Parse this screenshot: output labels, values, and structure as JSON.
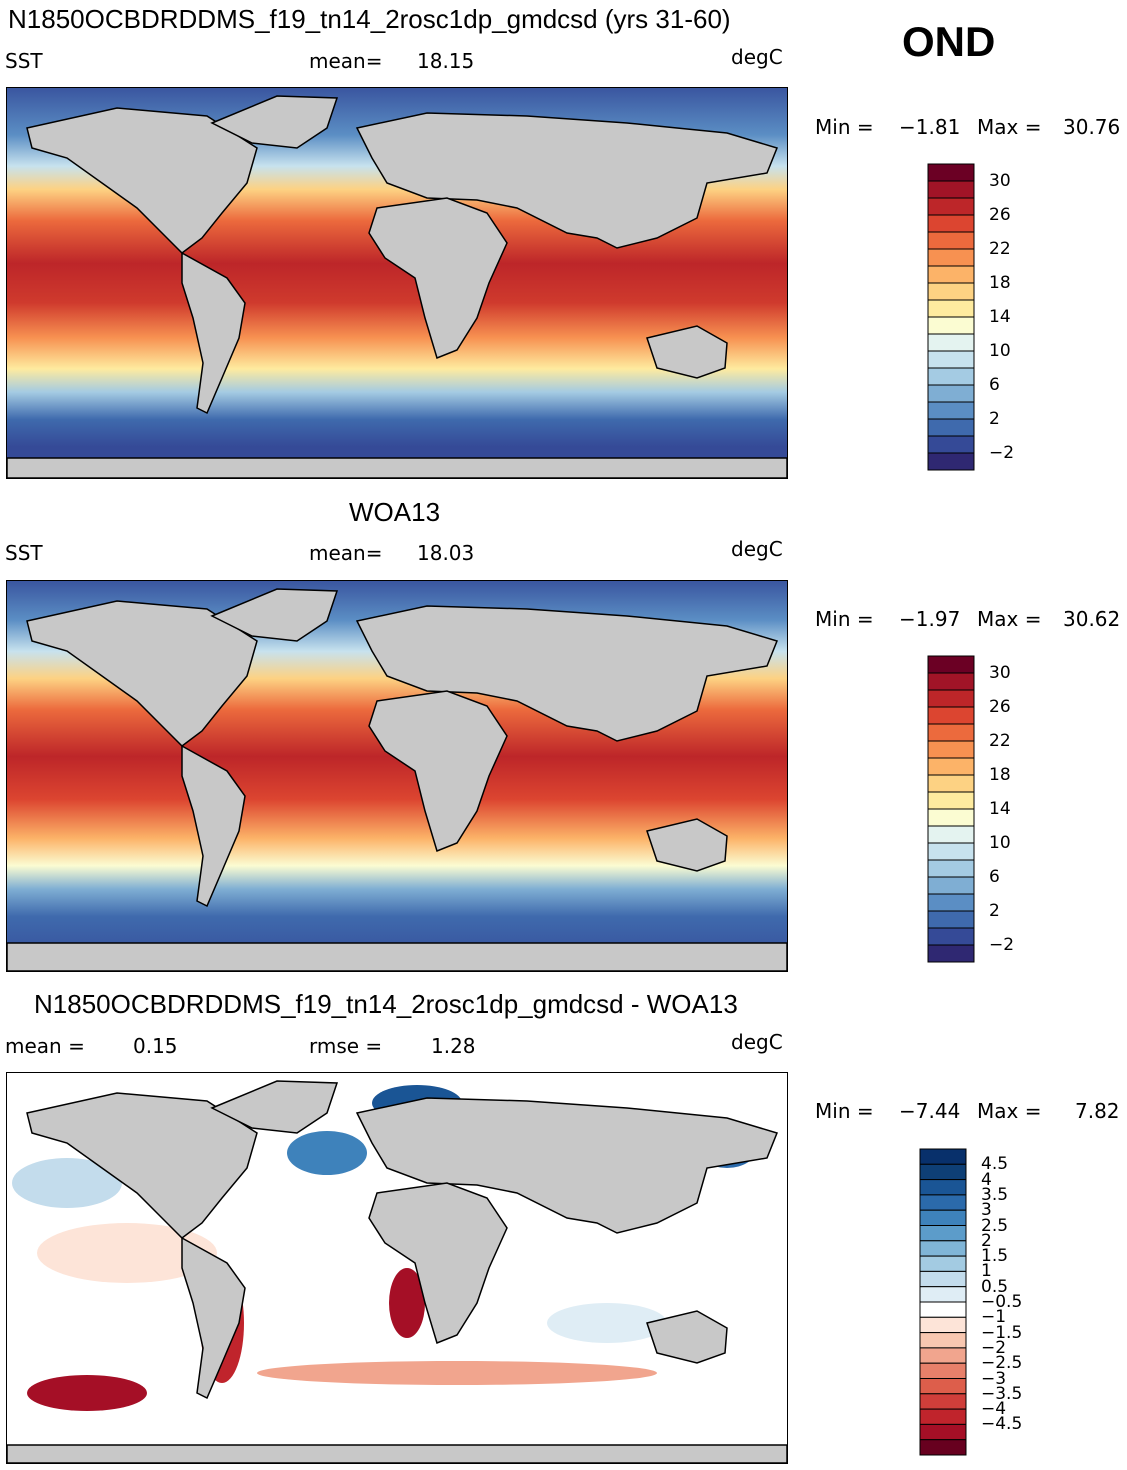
{
  "season": "OND",
  "panels": [
    {
      "title": "N1850OCBDRDDMS_f19_tn14_2rosc1dp_gmdcsd (yrs 31-60)",
      "variable": "SST",
      "stat1_label": "mean=",
      "stat1_value": "18.15",
      "stat2_label": "",
      "stat2_value": "",
      "units": "degC",
      "min_label": "Min =",
      "min_value": "−1.81",
      "max_label": "Max =",
      "max_value": "30.76"
    },
    {
      "title": "WOA13",
      "variable": "SST",
      "stat1_label": "mean=",
      "stat1_value": "18.03",
      "stat2_label": "",
      "stat2_value": "",
      "units": "degC",
      "min_label": "Min =",
      "min_value": "−1.97",
      "max_label": "Max =",
      "max_value": "30.62"
    },
    {
      "title": "N1850OCBDRDDMS_f19_tn14_2rosc1dp_gmdcsd - WOA13",
      "variable": "",
      "stat1_label": "mean =",
      "stat1_value": "0.15",
      "stat2_label": "rmse =",
      "stat2_value": "1.28",
      "units": "degC",
      "min_label": "Min =",
      "min_value": "−7.44",
      "max_label": "Max =",
      "max_value": "7.82"
    }
  ],
  "colorbars": {
    "sst": {
      "colors": [
        "#2f2872",
        "#354a97",
        "#3f6aad",
        "#5b8ec4",
        "#7faed3",
        "#a4cbe3",
        "#c7e2ee",
        "#e4f3f0",
        "#fbfcd2",
        "#feeb9f",
        "#fdd283",
        "#fcb368",
        "#f79151",
        "#ec6a3d",
        "#dc4530",
        "#bd2629",
        "#a11427",
        "#6b0024"
      ],
      "labels": [
        "30",
        "26",
        "22",
        "18",
        "14",
        "10",
        "6",
        "2",
        "−2"
      ]
    },
    "diff": {
      "colors": [
        "#67001f",
        "#a50f26",
        "#c0242c",
        "#d03e3a",
        "#dd5e4b",
        "#e7806a",
        "#f1a58e",
        "#f8c7b0",
        "#fde4d8",
        "#ffffff",
        "#dfedf5",
        "#c3dcec",
        "#a3cbe2",
        "#80b5d7",
        "#5c9cca",
        "#3e82bb",
        "#2b6aab",
        "#1a5595",
        "#0e3f76",
        "#08306b"
      ],
      "labels": [
        "4.5",
        "4",
        "3.5",
        "3",
        "2.5",
        "2",
        "1.5",
        "1",
        "0.5",
        "−0.5",
        "−1",
        "−1.5",
        "−2",
        "−2.5",
        "−3",
        "−3.5",
        "−4",
        "−4.5"
      ]
    }
  }
}
